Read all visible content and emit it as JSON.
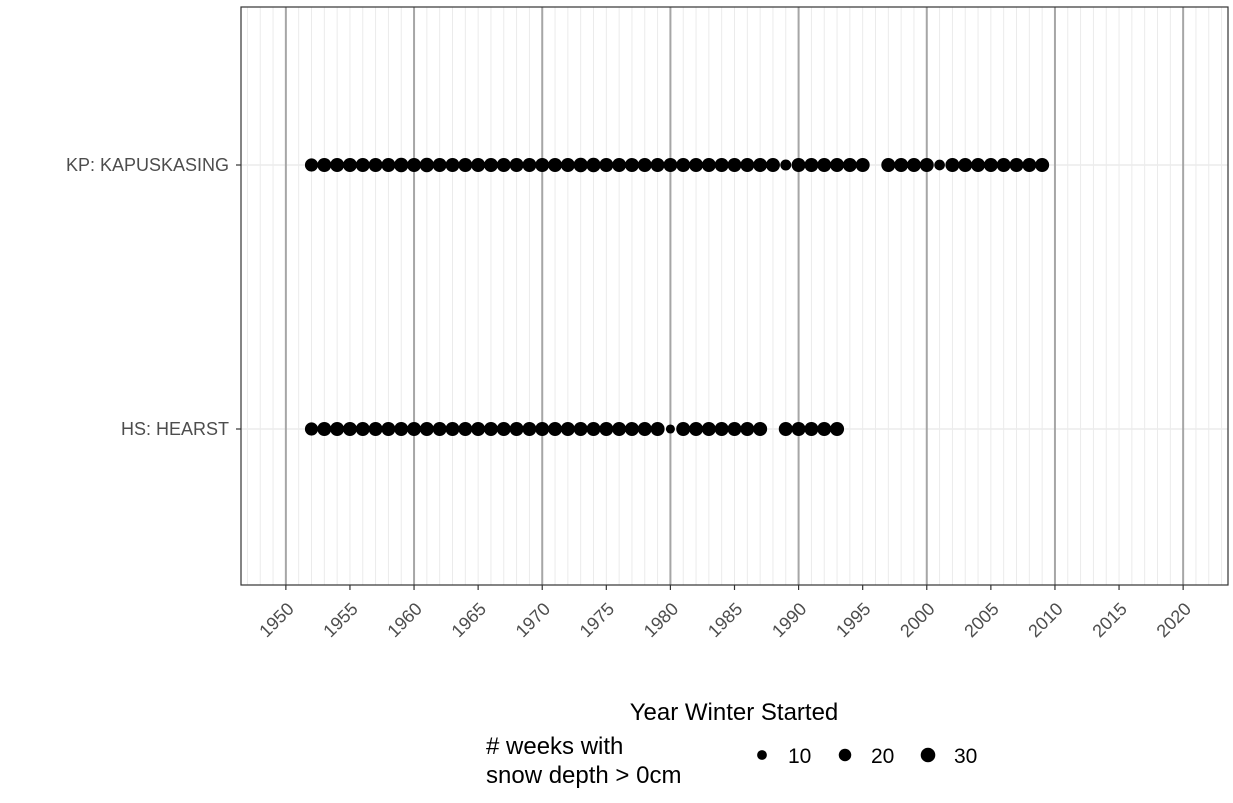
{
  "chart_data": {
    "type": "scatter",
    "title": "",
    "xlabel": "Year Winter Started",
    "ylabel": "",
    "xlim": [
      1946.5,
      2023.5
    ],
    "x_major_breaks": [
      1950,
      1960,
      1970,
      1980,
      1990,
      2000,
      2010,
      2020
    ],
    "x_tick_labels": [
      "1950",
      "1955",
      "1960",
      "1965",
      "1970",
      "1975",
      "1980",
      "1985",
      "1990",
      "1995",
      "2000",
      "2005",
      "2010",
      "2015",
      "2020"
    ],
    "x_tick_values": [
      1950,
      1955,
      1960,
      1965,
      1970,
      1975,
      1980,
      1985,
      1990,
      1995,
      2000,
      2005,
      2010,
      2015,
      2020
    ],
    "categories": [
      "KP: KAPUSKASING",
      "HS: HEARST"
    ],
    "grid": true,
    "size_legend": {
      "title_lines": [
        "# weeks with",
        "snow depth > 0cm"
      ],
      "values": [
        10,
        20,
        30
      ],
      "labels": [
        "10",
        "20",
        "30"
      ],
      "position": "bottom"
    },
    "colors": {
      "point": "#000000",
      "major_grid": "#a6a6a6",
      "minor_grid": "#ebebeb",
      "panel_border": "#333333"
    },
    "series": [
      {
        "category": "KP: KAPUSKASING",
        "points": [
          {
            "x": 1952,
            "weeks": 23
          },
          {
            "x": 1953,
            "weeks": 27
          },
          {
            "x": 1954,
            "weeks": 27
          },
          {
            "x": 1955,
            "weeks": 27
          },
          {
            "x": 1956,
            "weeks": 27
          },
          {
            "x": 1957,
            "weeks": 27
          },
          {
            "x": 1958,
            "weeks": 27
          },
          {
            "x": 1959,
            "weeks": 29
          },
          {
            "x": 1960,
            "weeks": 27
          },
          {
            "x": 1961,
            "weeks": 29
          },
          {
            "x": 1962,
            "weeks": 27
          },
          {
            "x": 1963,
            "weeks": 27
          },
          {
            "x": 1964,
            "weeks": 27
          },
          {
            "x": 1965,
            "weeks": 27
          },
          {
            "x": 1966,
            "weeks": 27
          },
          {
            "x": 1967,
            "weeks": 27
          },
          {
            "x": 1968,
            "weeks": 27
          },
          {
            "x": 1969,
            "weeks": 27
          },
          {
            "x": 1970,
            "weeks": 27
          },
          {
            "x": 1971,
            "weeks": 27
          },
          {
            "x": 1972,
            "weeks": 27
          },
          {
            "x": 1973,
            "weeks": 29
          },
          {
            "x": 1974,
            "weeks": 29
          },
          {
            "x": 1975,
            "weeks": 27
          },
          {
            "x": 1976,
            "weeks": 27
          },
          {
            "x": 1977,
            "weeks": 27
          },
          {
            "x": 1978,
            "weeks": 27
          },
          {
            "x": 1979,
            "weeks": 27
          },
          {
            "x": 1980,
            "weeks": 27
          },
          {
            "x": 1981,
            "weeks": 27
          },
          {
            "x": 1982,
            "weeks": 27
          },
          {
            "x": 1983,
            "weeks": 27
          },
          {
            "x": 1984,
            "weeks": 27
          },
          {
            "x": 1985,
            "weeks": 27
          },
          {
            "x": 1986,
            "weeks": 27
          },
          {
            "x": 1987,
            "weeks": 27
          },
          {
            "x": 1988,
            "weeks": 27
          },
          {
            "x": 1989,
            "weeks": 14
          },
          {
            "x": 1990,
            "weeks": 27
          },
          {
            "x": 1991,
            "weeks": 27
          },
          {
            "x": 1992,
            "weeks": 27
          },
          {
            "x": 1993,
            "weeks": 27
          },
          {
            "x": 1994,
            "weeks": 27
          },
          {
            "x": 1995,
            "weeks": 27
          },
          {
            "x": 1997,
            "weeks": 27
          },
          {
            "x": 1998,
            "weeks": 27
          },
          {
            "x": 1999,
            "weeks": 27
          },
          {
            "x": 2000,
            "weeks": 27
          },
          {
            "x": 2001,
            "weeks": 13
          },
          {
            "x": 2002,
            "weeks": 27
          },
          {
            "x": 2003,
            "weeks": 27
          },
          {
            "x": 2004,
            "weeks": 27
          },
          {
            "x": 2005,
            "weeks": 27
          },
          {
            "x": 2006,
            "weeks": 27
          },
          {
            "x": 2007,
            "weeks": 27
          },
          {
            "x": 2008,
            "weeks": 27
          },
          {
            "x": 2009,
            "weeks": 27
          }
        ]
      },
      {
        "category": "HS: HEARST",
        "points": [
          {
            "x": 1952,
            "weeks": 23
          },
          {
            "x": 1953,
            "weeks": 27
          },
          {
            "x": 1954,
            "weeks": 27
          },
          {
            "x": 1955,
            "weeks": 27
          },
          {
            "x": 1956,
            "weeks": 27
          },
          {
            "x": 1957,
            "weeks": 27
          },
          {
            "x": 1958,
            "weeks": 27
          },
          {
            "x": 1959,
            "weeks": 27
          },
          {
            "x": 1960,
            "weeks": 27
          },
          {
            "x": 1961,
            "weeks": 27
          },
          {
            "x": 1962,
            "weeks": 27
          },
          {
            "x": 1963,
            "weeks": 27
          },
          {
            "x": 1964,
            "weeks": 27
          },
          {
            "x": 1965,
            "weeks": 27
          },
          {
            "x": 1966,
            "weeks": 27
          },
          {
            "x": 1967,
            "weeks": 27
          },
          {
            "x": 1968,
            "weeks": 27
          },
          {
            "x": 1969,
            "weeks": 27
          },
          {
            "x": 1970,
            "weeks": 27
          },
          {
            "x": 1971,
            "weeks": 27
          },
          {
            "x": 1972,
            "weeks": 27
          },
          {
            "x": 1973,
            "weeks": 27
          },
          {
            "x": 1974,
            "weeks": 27
          },
          {
            "x": 1975,
            "weeks": 27
          },
          {
            "x": 1976,
            "weeks": 27
          },
          {
            "x": 1977,
            "weeks": 27
          },
          {
            "x": 1978,
            "weeks": 27
          },
          {
            "x": 1979,
            "weeks": 27
          },
          {
            "x": 1980,
            "weeks": 8
          },
          {
            "x": 1981,
            "weeks": 27
          },
          {
            "x": 1982,
            "weeks": 27
          },
          {
            "x": 1983,
            "weeks": 27
          },
          {
            "x": 1984,
            "weeks": 27
          },
          {
            "x": 1985,
            "weeks": 27
          },
          {
            "x": 1986,
            "weeks": 27
          },
          {
            "x": 1987,
            "weeks": 27
          },
          {
            "x": 1989,
            "weeks": 27
          },
          {
            "x": 1990,
            "weeks": 27
          },
          {
            "x": 1991,
            "weeks": 27
          },
          {
            "x": 1992,
            "weeks": 27
          },
          {
            "x": 1993,
            "weeks": 27
          }
        ]
      }
    ]
  }
}
